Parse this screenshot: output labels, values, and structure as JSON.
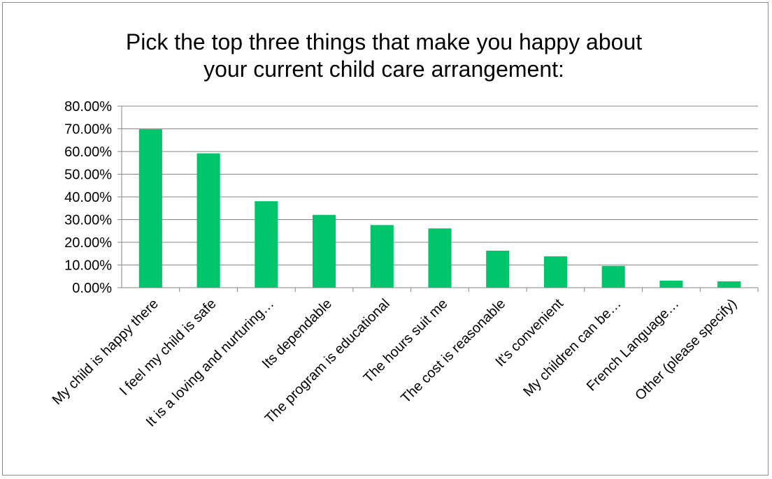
{
  "chart_data": {
    "type": "bar",
    "title": "Pick the top three things that make you happy about your current child care arrangement:",
    "title_lines": [
      "Pick the top three things that make you happy about",
      "your current child care arrangement:"
    ],
    "categories": [
      "My child is happy there",
      "I feel my child is safe",
      "It is a loving and nurturing…",
      "Its dependable",
      "The program is educational",
      "The hours suit me",
      "The cost is reasonable",
      "It's convenient",
      "My children can be…",
      "French Language…",
      "Other (please specify)"
    ],
    "values": [
      69.8,
      59.2,
      38.1,
      32.1,
      27.6,
      26.1,
      16.3,
      13.8,
      9.6,
      3.1,
      2.8
    ],
    "y_tick_labels": [
      "0.00%",
      "10.00%",
      "20.00%",
      "30.00%",
      "40.00%",
      "50.00%",
      "60.00%",
      "70.00%",
      "80.00%"
    ],
    "ylim": [
      0,
      80
    ],
    "y_tick_step": 10,
    "y_unit": "%",
    "xlabel": "",
    "ylabel": "",
    "grid": "horizontal",
    "legend": "none",
    "bar_color": "#00c56a",
    "axis_color": "#868686",
    "grid_color": "#868686"
  }
}
